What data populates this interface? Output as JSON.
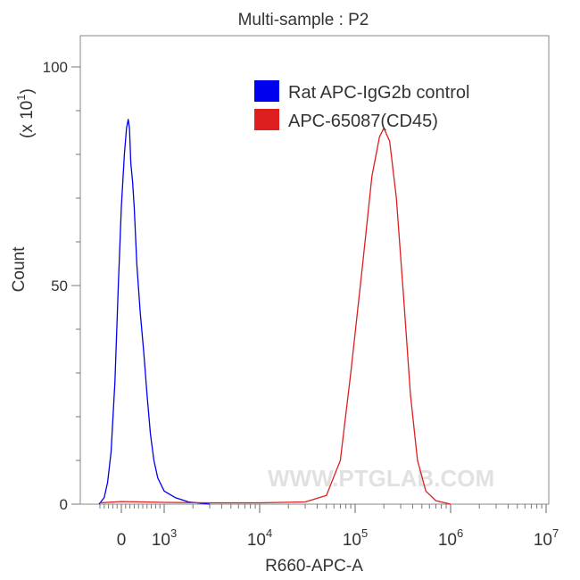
{
  "chart_data": {
    "type": "line",
    "title": "Multi-sample : P2",
    "xlabel": "R660-APC-A",
    "ylabel": "Count",
    "y_multiplier_label": "(x 10",
    "y_multiplier_exp": "1",
    "x_scale": "biexponential (log above 10^3)",
    "ylim": [
      0,
      100
    ],
    "y_ticks": [
      {
        "label": "0",
        "value": 0
      },
      {
        "label": "50",
        "value": 50
      },
      {
        "label": "100",
        "value": 100
      }
    ],
    "x_ticks": [
      {
        "base": "0",
        "exp": "",
        "value": 0
      },
      {
        "base": "10",
        "exp": "3",
        "value": 1000
      },
      {
        "base": "10",
        "exp": "4",
        "value": 10000
      },
      {
        "base": "10",
        "exp": "5",
        "value": 100000
      },
      {
        "base": "10",
        "exp": "6",
        "value": 1000000
      },
      {
        "base": "10",
        "exp": "7",
        "value": 10000000
      }
    ],
    "legend_position": "top-right",
    "grid": false,
    "series": [
      {
        "name": "Rat APC-IgG2b control",
        "color": "#0000ee",
        "points": [
          [
            -520,
            0
          ],
          [
            -400,
            1.5
          ],
          [
            -320,
            5
          ],
          [
            -240,
            12
          ],
          [
            -150,
            28
          ],
          [
            -70,
            50
          ],
          [
            0,
            68
          ],
          [
            70,
            80
          ],
          [
            120,
            86
          ],
          [
            160,
            88
          ],
          [
            190,
            86
          ],
          [
            220,
            78
          ],
          [
            260,
            74
          ],
          [
            300,
            68
          ],
          [
            360,
            55
          ],
          [
            440,
            44
          ],
          [
            520,
            35
          ],
          [
            600,
            25
          ],
          [
            680,
            16
          ],
          [
            760,
            10
          ],
          [
            850,
            6
          ],
          [
            1000,
            3
          ],
          [
            1300,
            1.5
          ],
          [
            1800,
            0.5
          ],
          [
            3000,
            0
          ]
        ]
      },
      {
        "name": "APC-65087(CD45)",
        "color": "#dd1f1f",
        "points": [
          [
            -500,
            0.3
          ],
          [
            0,
            0.6
          ],
          [
            500,
            0.5
          ],
          [
            1000,
            0.4
          ],
          [
            3000,
            0.3
          ],
          [
            10000,
            0.3
          ],
          [
            30000,
            0.5
          ],
          [
            50000,
            2
          ],
          [
            70000,
            10
          ],
          [
            90000,
            30
          ],
          [
            120000,
            55
          ],
          [
            150000,
            75
          ],
          [
            180000,
            84
          ],
          [
            200000,
            86
          ],
          [
            230000,
            83
          ],
          [
            270000,
            70
          ],
          [
            320000,
            48
          ],
          [
            380000,
            25
          ],
          [
            450000,
            10
          ],
          [
            550000,
            3
          ],
          [
            700000,
            0.8
          ],
          [
            1000000,
            0
          ]
        ]
      }
    ]
  },
  "watermark": "WWW.PTGLAB.COM"
}
